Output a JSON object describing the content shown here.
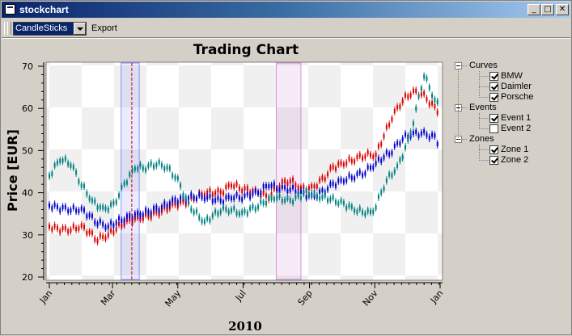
{
  "window": {
    "title": "stockchart",
    "minimize_label": "_",
    "maximize_label": "□",
    "close_label": "✕"
  },
  "toolbar": {
    "mode_value": "CandleSticks",
    "export_label": "Export"
  },
  "legend_tree": {
    "groups": [
      {
        "label": "Curves",
        "items": [
          {
            "label": "BMW",
            "checked": true
          },
          {
            "label": "Daimler",
            "checked": true
          },
          {
            "label": "Porsche",
            "checked": true
          }
        ]
      },
      {
        "label": "Events",
        "items": [
          {
            "label": "Event 1",
            "checked": true
          },
          {
            "label": "Event 2",
            "checked": false
          }
        ]
      },
      {
        "label": "Zones",
        "items": [
          {
            "label": "Zone 1",
            "checked": true
          },
          {
            "label": "Zone 2",
            "checked": true
          }
        ]
      }
    ]
  },
  "chart_data": {
    "type": "line",
    "title": "Trading Chart",
    "xlabel": "2010",
    "ylabel": "Price [EUR]",
    "xlim": [
      0,
      365
    ],
    "ylim": [
      20,
      70
    ],
    "yticks": [
      20,
      30,
      40,
      50,
      60,
      70
    ],
    "xticks": [
      {
        "label": "Jan",
        "day": 0
      },
      {
        "label": "Mar",
        "day": 59
      },
      {
        "label": "May",
        "day": 120
      },
      {
        "label": "Jul",
        "day": 181
      },
      {
        "label": "Sep",
        "day": 243
      },
      {
        "label": "Nov",
        "day": 304
      },
      {
        "label": "Jan",
        "day": 365
      }
    ],
    "series": [
      {
        "name": "BMW",
        "color": "#dd0000",
        "x": [
          0,
          15,
          30,
          45,
          55,
          70,
          85,
          100,
          115,
          130,
          145,
          160,
          170,
          180,
          195,
          205,
          215,
          225,
          235,
          245,
          255,
          265,
          275,
          285,
          295,
          305,
          320,
          330,
          340,
          350,
          360,
          365
        ],
        "y": [
          32,
          31,
          32,
          29,
          30,
          33,
          34,
          35,
          37,
          38,
          40,
          40,
          42,
          41,
          40,
          39,
          42,
          43,
          41,
          41,
          43,
          46,
          47,
          48,
          49,
          49,
          58,
          62,
          64,
          63,
          60,
          59
        ]
      },
      {
        "name": "Daimler",
        "color": "#0000cc",
        "x": [
          0,
          15,
          30,
          45,
          55,
          70,
          85,
          100,
          115,
          130,
          145,
          160,
          170,
          180,
          195,
          205,
          215,
          225,
          235,
          245,
          255,
          265,
          275,
          285,
          295,
          305,
          320,
          330,
          340,
          350,
          360,
          365
        ],
        "y": [
          37,
          36,
          36,
          33,
          32,
          34,
          35,
          36,
          38,
          39,
          39,
          38,
          39,
          39,
          40,
          42,
          41,
          41,
          40,
          39,
          40,
          42,
          43,
          44,
          45,
          47,
          50,
          53,
          54,
          54,
          53,
          51
        ]
      },
      {
        "name": "Porsche",
        "color": "#008080",
        "x": [
          0,
          10,
          20,
          30,
          40,
          50,
          60,
          70,
          80,
          90,
          100,
          110,
          120,
          130,
          145,
          160,
          170,
          180,
          195,
          210,
          225,
          240,
          255,
          270,
          285,
          300,
          305,
          315,
          325,
          335,
          340,
          350,
          360,
          365
        ],
        "y": [
          44,
          48,
          47,
          42,
          38,
          36,
          37,
          42,
          46,
          46,
          47,
          46,
          43,
          37,
          33,
          36,
          36,
          35,
          37,
          39,
          38,
          40,
          39,
          38,
          36,
          35,
          37,
          43,
          46,
          52,
          57,
          68,
          62,
          60
        ]
      }
    ],
    "zones": [
      {
        "name": "Zone 1",
        "color": "#6666ff",
        "x0": 67,
        "x1": 84
      },
      {
        "name": "Zone 2",
        "color": "#cc66cc",
        "x0": 212,
        "x1": 235
      }
    ],
    "events": [
      {
        "name": "Event 1",
        "color": "#cc0000",
        "x": 77
      }
    ]
  }
}
